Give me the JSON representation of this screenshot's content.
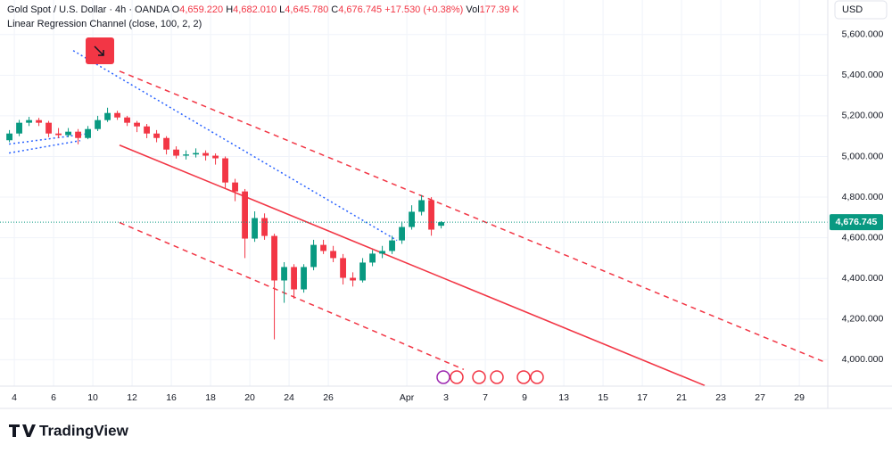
{
  "header": {
    "symbol": "Gold Spot / U.S. Dollar · 4h · OANDA",
    "open_label": "O",
    "open": "4,659.220",
    "high_label": "H",
    "high": "4,682.010",
    "low_label": "L",
    "low": "4,645.780",
    "close_label": "C",
    "close": "4,676.745",
    "change": "+17.530 (+0.38%)",
    "volume_label": "Vol",
    "volume": "177.39 K",
    "indicator": "Linear Regression Channel (close, 100, 2, 2)"
  },
  "currency": "USD",
  "brand": "TradingView",
  "chart_data": {
    "type": "candlestick",
    "x": [
      -0.25,
      0.25,
      0.75,
      1.25,
      1.75,
      2.25,
      2.75,
      3.25,
      3.75,
      4.25,
      4.75,
      5.25,
      5.75,
      6.25,
      6.75,
      7.25,
      7.75,
      8.25,
      8.75,
      9.25,
      9.75,
      10.25,
      10.75,
      11.25,
      11.75,
      12.25,
      12.75,
      13.25,
      13.75,
      14.25,
      14.75,
      15.25,
      15.75,
      16.25,
      16.75,
      17.25,
      17.75,
      18.25,
      18.75,
      19.25,
      19.75,
      20.25,
      20.75,
      21.25,
      21.75
    ],
    "open": [
      5080,
      5113,
      5166,
      5179,
      5166,
      5113,
      5105,
      5122,
      5091,
      5135,
      5179,
      5214,
      5192,
      5166,
      5148,
      5113,
      5091,
      5034,
      5004,
      5010,
      5017,
      5004,
      4991,
      4872,
      4828,
      4596,
      4697,
      4609,
      4390,
      4456,
      4346,
      4456,
      4565,
      4535,
      4500,
      4403,
      4390,
      4478,
      4522,
      4535,
      4587,
      4653,
      4728,
      4785,
      4659.22
    ],
    "high": [
      5130,
      5180,
      5195,
      5190,
      5175,
      5140,
      5140,
      5135,
      5150,
      5200,
      5240,
      5225,
      5200,
      5175,
      5160,
      5130,
      5100,
      5050,
      5030,
      5040,
      5030,
      5015,
      5000,
      4890,
      4840,
      4730,
      4720,
      4620,
      4480,
      4470,
      4470,
      4590,
      4590,
      4560,
      4520,
      4430,
      4500,
      4540,
      4560,
      4610,
      4680,
      4760,
      4810,
      4800,
      4682.01
    ],
    "low": [
      5070,
      5100,
      5150,
      5150,
      5095,
      5090,
      5095,
      5060,
      5085,
      5125,
      5170,
      5180,
      5150,
      5120,
      5090,
      5070,
      5010,
      4990,
      4985,
      4995,
      4980,
      4960,
      4840,
      4780,
      4500,
      4580,
      4590,
      4100,
      4280,
      4300,
      4330,
      4440,
      4520,
      4480,
      4370,
      4360,
      4380,
      4460,
      4500,
      4520,
      4570,
      4640,
      4710,
      4610,
      4645.78
    ],
    "close": [
      5113,
      5166,
      5179,
      5166,
      5113,
      5105,
      5122,
      5091,
      5135,
      5179,
      5214,
      5192,
      5166,
      5148,
      5113,
      5091,
      5034,
      5004,
      5010,
      5017,
      5004,
      4991,
      4872,
      4828,
      4596,
      4697,
      4609,
      4390,
      4456,
      4346,
      4456,
      4565,
      4535,
      4500,
      4403,
      4390,
      4478,
      4522,
      4535,
      4587,
      4653,
      4728,
      4785,
      4640,
      4676.745
    ],
    "up_color": "#089981",
    "down_color": "#f23645",
    "xlim": [
      -0.73,
      41.45
    ],
    "ylim": [
      3870,
      5770
    ],
    "xticks": [
      {
        "value": 0,
        "label": "4"
      },
      {
        "value": 2,
        "label": "6"
      },
      {
        "value": 4,
        "label": "10"
      },
      {
        "value": 6,
        "label": "12"
      },
      {
        "value": 8,
        "label": "16"
      },
      {
        "value": 10,
        "label": "18"
      },
      {
        "value": 12,
        "label": "20"
      },
      {
        "value": 14,
        "label": "24"
      },
      {
        "value": 16,
        "label": "26"
      },
      {
        "value": 20,
        "label": "Apr"
      },
      {
        "value": 22,
        "label": "3"
      },
      {
        "value": 24,
        "label": "7"
      },
      {
        "value": 26,
        "label": "9"
      },
      {
        "value": 28,
        "label": "13"
      },
      {
        "value": 30,
        "label": "15"
      },
      {
        "value": 32,
        "label": "17"
      },
      {
        "value": 34,
        "label": "21"
      },
      {
        "value": 36,
        "label": "23"
      },
      {
        "value": 38,
        "label": "27"
      },
      {
        "value": 40,
        "label": "29"
      }
    ],
    "yticks": [
      {
        "value": 4000,
        "label": "4,000.000"
      },
      {
        "value": 4200,
        "label": "4,200.000"
      },
      {
        "value": 4400,
        "label": "4,400.000"
      },
      {
        "value": 4600,
        "label": "4,600.000"
      },
      {
        "value": 4800,
        "label": "4,800.000"
      },
      {
        "value": 5000,
        "label": "5,000.000"
      },
      {
        "value": 5200,
        "label": "5,200.000"
      },
      {
        "value": 5400,
        "label": "5,400.000"
      },
      {
        "value": 5600,
        "label": "5,600.000"
      }
    ],
    "grid": true,
    "last_price_color": "#089981",
    "overlays": [
      {
        "style": "solid",
        "color": "#f23645",
        "x": [
          5.36,
          35.18
        ],
        "y": [
          5056,
          3873
        ]
      },
      {
        "style": "dashed",
        "color": "#f23645",
        "x": [
          5.36,
          41.32
        ],
        "y": [
          5420,
          3987
        ]
      },
      {
        "style": "dashed",
        "color": "#f23645",
        "x": [
          5.36,
          22.9
        ],
        "y": [
          4675,
          3952
        ]
      },
      {
        "style": "dotted",
        "color": "#2962ff",
        "x": [
          3.0,
          19.5
        ],
        "y": [
          5521,
          4587
        ]
      },
      {
        "style": "dotted",
        "color": "#2962ff",
        "x": [
          -0.27,
          3.36
        ],
        "y": [
          5017,
          5078
        ]
      },
      {
        "style": "dotted",
        "color": "#2962ff",
        "x": [
          -0.27,
          3.82
        ],
        "y": [
          5061,
          5113
        ]
      }
    ]
  }
}
